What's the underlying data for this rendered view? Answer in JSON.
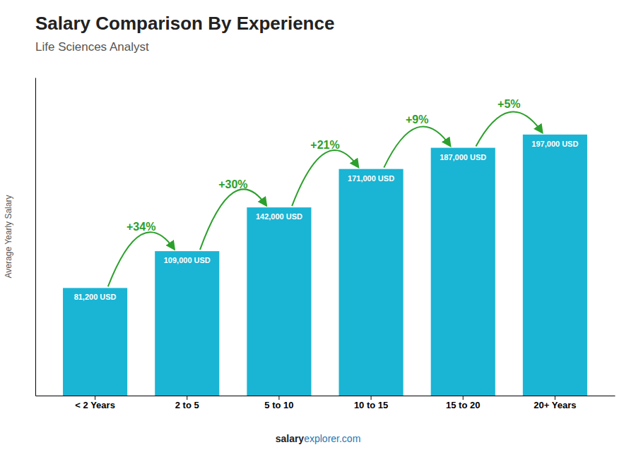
{
  "chart_data": {
    "type": "bar",
    "title": "Salary Comparison By Experience",
    "subtitle": "Life Sciences Analyst",
    "y_label": "Average Yearly Salary",
    "footer": [
      "salary",
      "explorer.com"
    ],
    "categories": [
      "< 2 Years",
      "2 to 5",
      "5 to 10",
      "10 to 15",
      "15 to 20",
      "20+ Years"
    ],
    "values": [
      81200,
      109000,
      142000,
      171000,
      187000,
      197000
    ],
    "value_labels": [
      "81,200 USD",
      "109,000 USD",
      "142,000 USD",
      "171,000 USD",
      "187,000 USD",
      "197,000 USD"
    ],
    "data_labels": true,
    "annotations": [
      "+34%",
      "+30%",
      "+21%",
      "+9%",
      "+5%"
    ],
    "color": "#1ab4d4",
    "ylim": [
      0,
      240000
    ],
    "tick_labels": "x"
  }
}
